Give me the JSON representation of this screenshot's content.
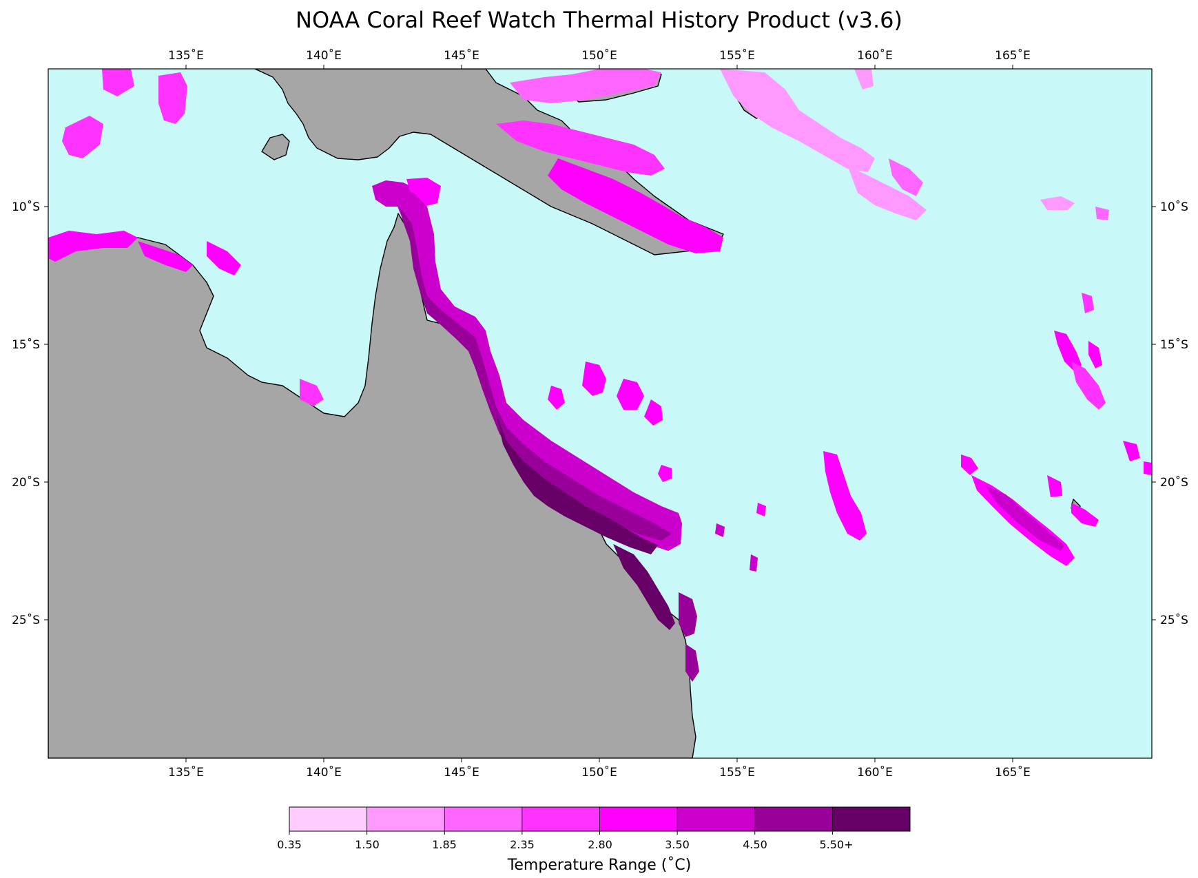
{
  "title": "NOAA Coral Reef Watch Thermal History Product (v3.6)",
  "colors": {
    "ocean": "#c8f8f8",
    "land": "#a6a6a6",
    "coast": "#000000",
    "scale": [
      "#ffccff",
      "#ff99ff",
      "#ff66ff",
      "#ff33ff",
      "#ff00ff",
      "#cc00cc",
      "#990099",
      "#660066"
    ]
  },
  "axes": {
    "lon_ticks": [
      "135˚E",
      "140˚E",
      "145˚E",
      "150˚E",
      "155˚E",
      "160˚E",
      "165˚E"
    ],
    "lat_ticks": [
      "10˚S",
      "15˚S",
      "20˚S",
      "25˚S"
    ]
  },
  "colorbar": {
    "tick_labels": [
      "0.35",
      "1.50",
      "1.85",
      "2.35",
      "2.80",
      "3.50",
      "4.50",
      "5.50+"
    ],
    "label": "Temperature Range (˚C)"
  }
}
